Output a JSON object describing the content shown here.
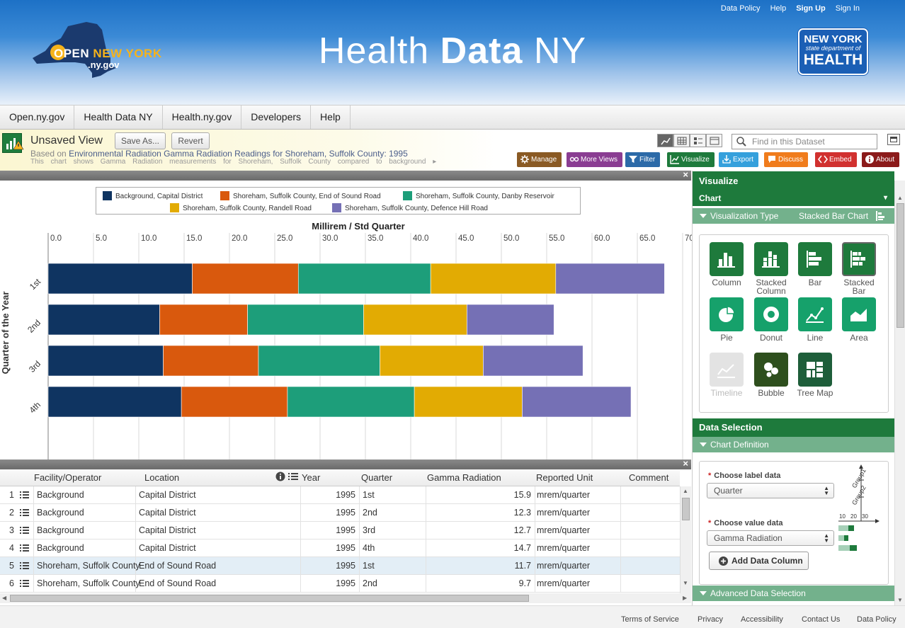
{
  "header": {
    "top_links": [
      "Data Policy",
      "Help",
      "Sign Up",
      "Sign In"
    ],
    "site_title_light": "Health",
    "site_title_bold": "Data",
    "site_title_end": "NY",
    "open_ny_open": "OPEN",
    "open_ny_ny": "NEW YORK",
    "open_ny_sub": ".ny.gov",
    "doh_line1": "NEW YORK",
    "doh_line2": "state department of",
    "doh_line3": "HEALTH"
  },
  "nav": [
    "Open.ny.gov",
    "Health Data NY",
    "Health.ny.gov",
    "Developers",
    "Help"
  ],
  "view": {
    "title": "Unsaved View",
    "save_as": "Save As...",
    "revert": "Revert",
    "based_on_prefix": "Based on",
    "based_on_link": "Environmental Radiation Gamma Radiation Readings for Shoreham, Suffolk County: 1995",
    "description": "This chart shows Gamma Radiation measurements for Shoreham, Suffolk County compared to background",
    "find_placeholder": "Find in this Dataset"
  },
  "toolbar": [
    {
      "label": "Manage",
      "color": "#8a5a24",
      "icon": "gear-icon"
    },
    {
      "label": "More Views",
      "color": "#8a3d92",
      "icon": "views-icon"
    },
    {
      "label": "Filter",
      "color": "#2c6aa8",
      "icon": "filter-icon"
    },
    {
      "label": "Visualize",
      "color": "#1e7a3c",
      "icon": "chart-icon"
    },
    {
      "label": "Export",
      "color": "#35a0dc",
      "icon": "export-icon"
    },
    {
      "label": "Discuss",
      "color": "#f07c1c",
      "icon": "comment-icon"
    },
    {
      "label": "Embed",
      "color": "#d1312f",
      "icon": "code-icon"
    },
    {
      "label": "About",
      "color": "#8b1a1a",
      "icon": "info-icon"
    }
  ],
  "chart_data": {
    "type": "bar",
    "orientation": "horizontal",
    "stacked": true,
    "title": "Millirem / Std Quarter",
    "ylabel": "Quarter of the Year",
    "xlabel": "",
    "xlim": [
      0,
      70
    ],
    "ticks": [
      "0.0",
      "5.0",
      "10.0",
      "15.0",
      "20.0",
      "25.0",
      "30.0",
      "35.0",
      "40.0",
      "45.0",
      "50.0",
      "55.0",
      "60.0",
      "65.0",
      "70.0"
    ],
    "categories": [
      "1st",
      "2nd",
      "3rd",
      "4th"
    ],
    "grid": true,
    "legend_position": "top",
    "series": [
      {
        "name": "Background, Capital District",
        "color": "#0f3461",
        "values": [
          15.9,
          12.3,
          12.7,
          14.7
        ]
      },
      {
        "name": "Shoreham, Suffolk County, End of Sound Road",
        "color": "#d9590d",
        "values": [
          11.7,
          9.7,
          10.5,
          11.7
        ]
      },
      {
        "name": "Shoreham, Suffolk County, Danby Reservoir",
        "color": "#1d9e7a",
        "values": [
          14.6,
          12.8,
          13.4,
          14.0
        ]
      },
      {
        "name": "Shoreham, Suffolk County, Randell Road",
        "color": "#e2ab03",
        "values": [
          13.8,
          11.4,
          11.4,
          11.9
        ]
      },
      {
        "name": "Shoreham, Suffolk County, Defence Hill Road",
        "color": "#7570b5",
        "values": [
          12.0,
          9.6,
          11.0,
          12.0
        ]
      }
    ]
  },
  "table": {
    "headers": [
      "Facility/Operator",
      "Location",
      "Year",
      "Quarter",
      "Gamma Radiation",
      "Reported Unit",
      "Comment"
    ],
    "rows": [
      {
        "n": "1",
        "facility": "Background",
        "location": "Capital District",
        "year": "1995",
        "quarter": "1st",
        "gamma": "15.9",
        "unit": "mrem/quarter"
      },
      {
        "n": "2",
        "facility": "Background",
        "location": "Capital District",
        "year": "1995",
        "quarter": "2nd",
        "gamma": "12.3",
        "unit": "mrem/quarter"
      },
      {
        "n": "3",
        "facility": "Background",
        "location": "Capital District",
        "year": "1995",
        "quarter": "3rd",
        "gamma": "12.7",
        "unit": "mrem/quarter"
      },
      {
        "n": "4",
        "facility": "Background",
        "location": "Capital District",
        "year": "1995",
        "quarter": "4th",
        "gamma": "14.7",
        "unit": "mrem/quarter"
      },
      {
        "n": "5",
        "facility": "Shoreham, Suffolk County",
        "location": "End of Sound Road",
        "year": "1995",
        "quarter": "1st",
        "gamma": "11.7",
        "unit": "mrem/quarter"
      },
      {
        "n": "6",
        "facility": "Shoreham, Suffolk County",
        "location": "End of Sound Road",
        "year": "1995",
        "quarter": "2nd",
        "gamma": "9.7",
        "unit": "mrem/quarter"
      }
    ],
    "selected_row": "5"
  },
  "sidebar": {
    "title": "Visualize",
    "chart_label": "Chart",
    "viz_type_label": "Visualization Type",
    "viz_type_value": "Stacked Bar Chart",
    "types": [
      {
        "label": "Column",
        "label2": ""
      },
      {
        "label": "Stacked",
        "label2": "Column"
      },
      {
        "label": "Bar",
        "label2": ""
      },
      {
        "label": "Stacked",
        "label2": "Bar"
      },
      {
        "label": "Pie",
        "label2": ""
      },
      {
        "label": "Donut",
        "label2": ""
      },
      {
        "label": "Line",
        "label2": ""
      },
      {
        "label": "Area",
        "label2": ""
      },
      {
        "label": "Timeline",
        "label2": ""
      },
      {
        "label": "Bubble",
        "label2": ""
      },
      {
        "label": "Tree Map",
        "label2": ""
      }
    ],
    "data_selection": "Data Selection",
    "chart_definition": "Chart Definition",
    "choose_label": "Choose label data",
    "label_value": "Quarter",
    "choose_value": "Choose value data",
    "value_value": "Gamma Radiation",
    "add_column": "Add Data Column",
    "advanced": "Advanced Data Selection",
    "mini_group1": "Group1",
    "mini_group2": "Group2",
    "mini_ticks": [
      "10",
      "20",
      "30"
    ]
  },
  "footer": [
    "Terms of Service",
    "Privacy",
    "Accessibility",
    "Contact Us",
    "Data Policy"
  ]
}
